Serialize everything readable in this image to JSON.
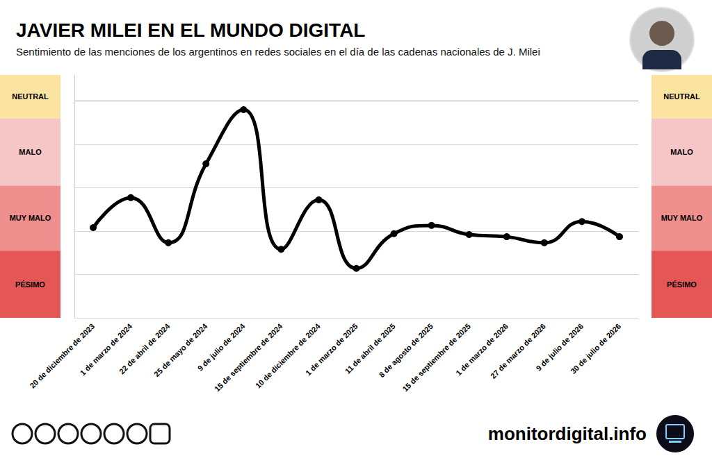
{
  "chart_data": {
    "type": "line",
    "title": "JAVIER MILEI EN EL MUNDO DIGITAL",
    "subtitle": "Sentimiento de las menciones de los argentinos en redes sociales en el día de las cadenas nacionales de J. Milei",
    "source": "monitordigital.info",
    "categories": [
      "20 de diciembre de 2023",
      "1 de marzo de 2024",
      "22 de abril de 2024",
      "25 de mayo de 2024",
      "9 de julio de 2024",
      "15 de septiembre de 2024",
      "10 de diciembre de 2024",
      "1 de marzo de 2025",
      "11 de abril de 2025",
      "8 de agosto de 2025",
      "15 de septiembre de 2025",
      "1 de marzo de 2026",
      "27 de marzo de 2026",
      "9 de julio de 2026",
      "30 de julio de 2026"
    ],
    "values": [
      2.08,
      2.77,
      1.73,
      3.55,
      4.8,
      1.58,
      2.72,
      1.14,
      1.94,
      2.13,
      1.92,
      1.87,
      1.73,
      2.22,
      1.87
    ],
    "color": "#000000",
    "marker": "circle",
    "line_style": "smooth",
    "ylim": [
      0,
      5.6
    ],
    "yticks": [
      0,
      1,
      2,
      3,
      4,
      5
    ],
    "grid": true,
    "tick_labels": "x",
    "bands": [
      {
        "label": "NEUTRAL",
        "from": 4.6,
        "to": 5.6,
        "color": "#fbe3a0"
      },
      {
        "label": "MALO",
        "from": 3.05,
        "to": 4.6,
        "color": "#f6c6c6"
      },
      {
        "label": "MUY MALO",
        "from": 1.55,
        "to": 3.05,
        "color": "#ee8f8d"
      },
      {
        "label": "PÉSIMO",
        "from": 0,
        "to": 1.55,
        "color": "#e55757"
      }
    ]
  }
}
